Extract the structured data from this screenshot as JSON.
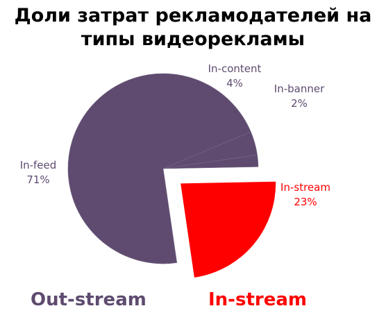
{
  "title_lines": [
    "Доли затрат рекламодателей на",
    "типы видеорекламы"
  ],
  "colors": {
    "out_stream": "#5e4b6f",
    "in_stream": "#ff0000"
  },
  "chart_data": {
    "type": "pie",
    "title": "Доли затрат рекламодателей на типы видеорекламы",
    "unit": "%",
    "slices": [
      {
        "name": "In-stream",
        "value": 23,
        "label": "23%",
        "group": "In-stream",
        "exploded": true
      },
      {
        "name": "In-feed",
        "value": 71,
        "label": "71%",
        "group": "Out-stream",
        "exploded": false
      },
      {
        "name": "In-content",
        "value": 4,
        "label": "4%",
        "group": "Out-stream",
        "exploded": false
      },
      {
        "name": "In-banner",
        "value": 2,
        "label": "2%",
        "group": "Out-stream",
        "exploded": false
      }
    ],
    "groups": [
      "Out-stream",
      "In-stream"
    ]
  },
  "legend": {
    "out_stream": "Out-stream",
    "in_stream": "In-stream"
  }
}
